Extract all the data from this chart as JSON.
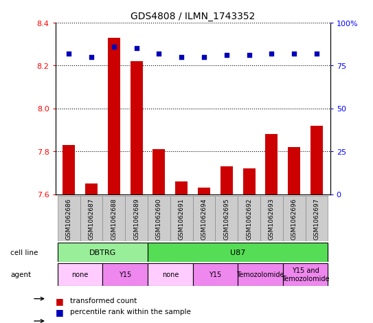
{
  "title": "GDS4808 / ILMN_1743352",
  "samples": [
    "GSM1062686",
    "GSM1062687",
    "GSM1062688",
    "GSM1062689",
    "GSM1062690",
    "GSM1062691",
    "GSM1062694",
    "GSM1062695",
    "GSM1062692",
    "GSM1062693",
    "GSM1062696",
    "GSM1062697"
  ],
  "red_values": [
    7.83,
    7.65,
    8.33,
    8.22,
    7.81,
    7.66,
    7.63,
    7.73,
    7.72,
    7.88,
    7.82,
    7.92
  ],
  "blue_values": [
    82,
    80,
    86,
    85,
    82,
    80,
    80,
    81,
    81,
    82,
    82,
    82
  ],
  "ylim_left": [
    7.6,
    8.4
  ],
  "ylim_right": [
    0,
    100
  ],
  "yticks_left": [
    7.6,
    7.8,
    8.0,
    8.2,
    8.4
  ],
  "yticks_right": [
    0,
    25,
    50,
    75,
    100
  ],
  "cell_line_groups": [
    {
      "label": "DBTRG",
      "start": 0,
      "end": 3,
      "color": "#99EE99"
    },
    {
      "label": "U87",
      "start": 4,
      "end": 11,
      "color": "#55DD55"
    }
  ],
  "agent_groups": [
    {
      "label": "none",
      "start": 0,
      "end": 1,
      "color": "#FFCCFF"
    },
    {
      "label": "Y15",
      "start": 2,
      "end": 3,
      "color": "#EE88EE"
    },
    {
      "label": "none",
      "start": 4,
      "end": 5,
      "color": "#FFCCFF"
    },
    {
      "label": "Y15",
      "start": 6,
      "end": 7,
      "color": "#EE88EE"
    },
    {
      "label": "Temozolomide",
      "start": 8,
      "end": 9,
      "color": "#EE88EE"
    },
    {
      "label": "Y15 and\nTemozolomide",
      "start": 10,
      "end": 11,
      "color": "#EE88EE"
    }
  ],
  "bar_color": "#CC0000",
  "dot_color": "#0000BB",
  "background": "#FFFFFF",
  "base_value": 7.6,
  "sample_box_color": "#CCCCCC",
  "sample_box_edge": "#888888"
}
